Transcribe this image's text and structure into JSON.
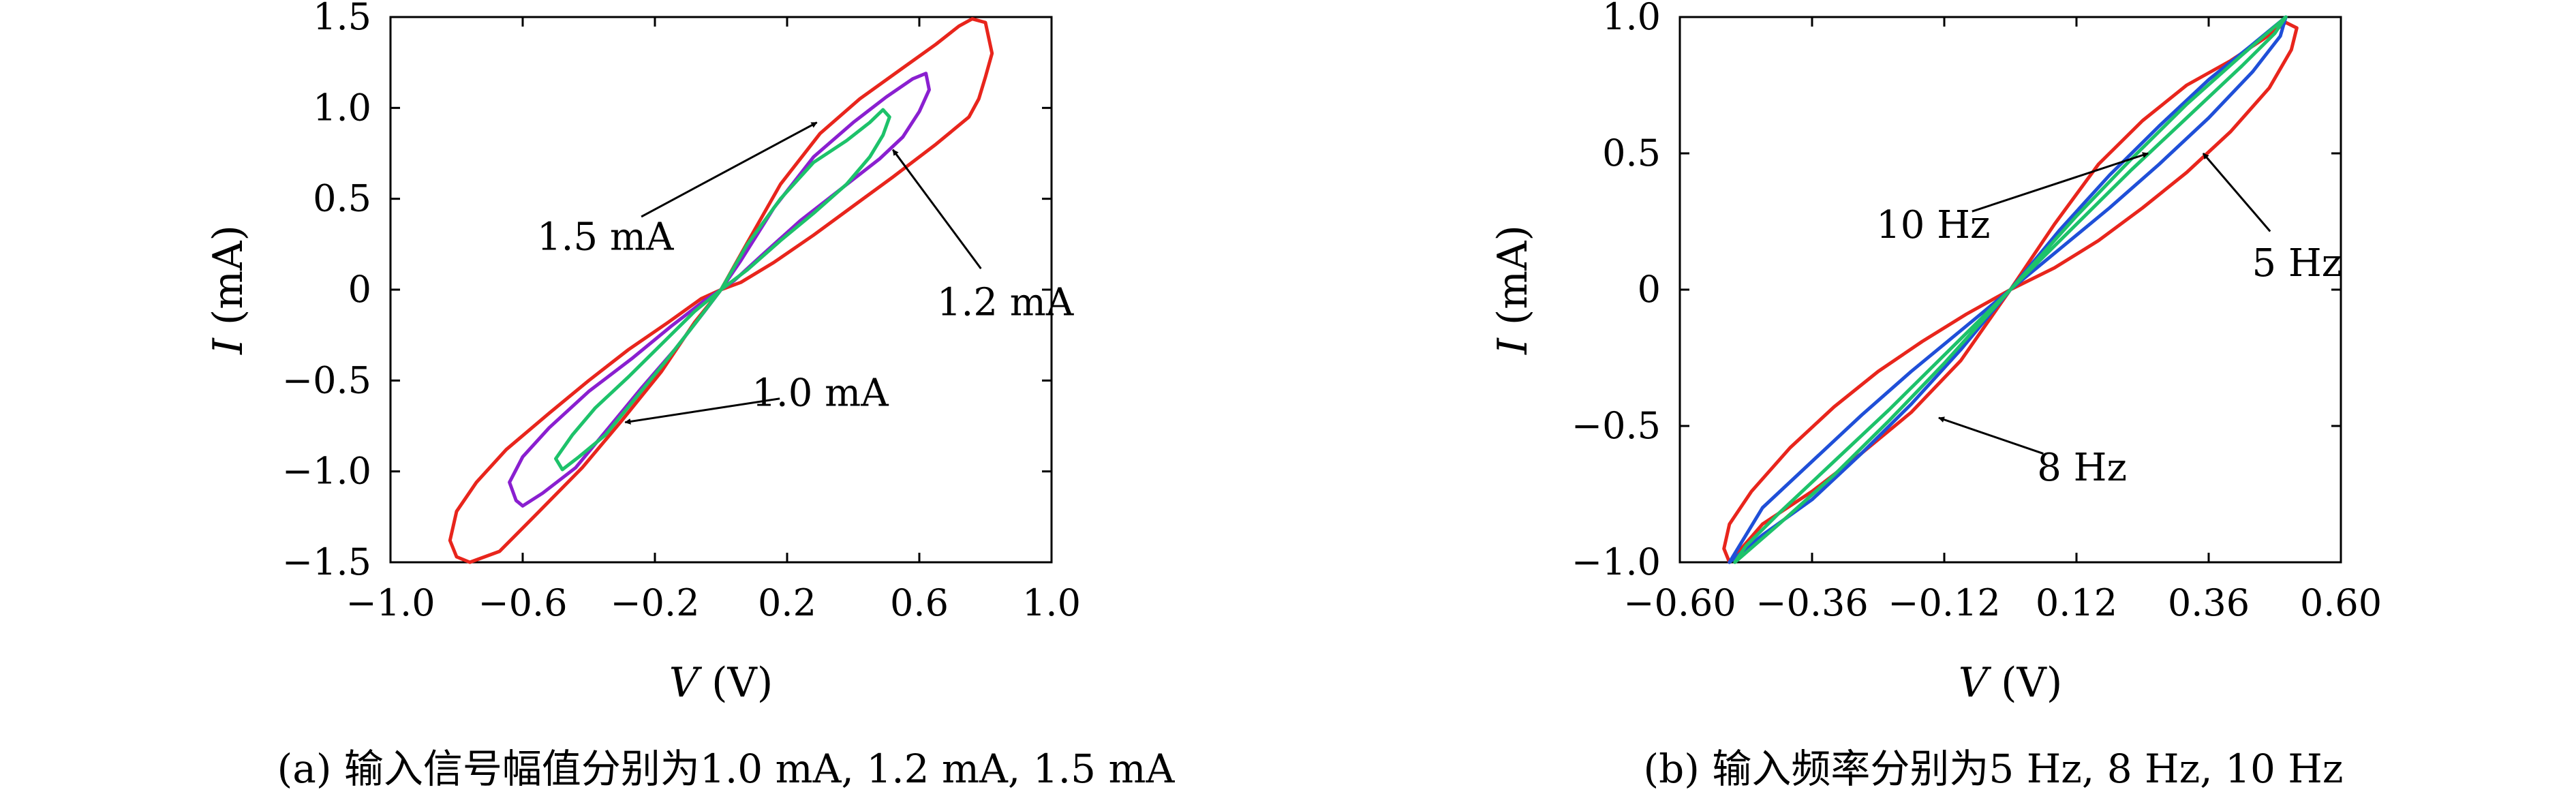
{
  "chart_data": [
    {
      "type": "line",
      "caption": "(a) 输入信号幅值分别为1.0 mA, 1.2 mA, 1.5 mA",
      "xlabel": "V (V)",
      "ylabel": "I (mA)",
      "xlim": [
        -1.0,
        1.0
      ],
      "ylim": [
        -1.5,
        1.5
      ],
      "xticks": [
        -1.0,
        -0.6,
        -0.2,
        0.2,
        0.6,
        1.0
      ],
      "xtick_labels": [
        "−1.0",
        "−0.6",
        "−0.2",
        "0.2",
        "0.6",
        "1.0"
      ],
      "yticks": [
        1.5,
        1.0,
        0.5,
        0,
        -0.5,
        -1.0,
        -1.5
      ],
      "ytick_labels": [
        "1.5",
        "1.0",
        "0.5",
        "0",
        "−0.5",
        "−1.0",
        "−1.5"
      ],
      "grid": false,
      "series": [
        {
          "color": "#e8251c",
          "x": [
            -0.76,
            -0.67,
            -0.55,
            -0.42,
            -0.3,
            -0.18,
            -0.08,
            0.0,
            0.08,
            0.18,
            0.3,
            0.42,
            0.55,
            0.65,
            0.72,
            0.76,
            0.8,
            0.82,
            0.8,
            0.78,
            0.75,
            0.65,
            0.52,
            0.4,
            0.28,
            0.16,
            0.06,
            0.0,
            -0.06,
            -0.16,
            -0.28,
            -0.4,
            -0.52,
            -0.65,
            -0.74,
            -0.8,
            -0.82,
            -0.8,
            -0.76
          ],
          "y": [
            -1.5,
            -1.44,
            -1.22,
            -0.98,
            -0.72,
            -0.45,
            -0.18,
            0.0,
            0.26,
            0.58,
            0.86,
            1.05,
            1.22,
            1.35,
            1.45,
            1.49,
            1.47,
            1.3,
            1.17,
            1.05,
            0.95,
            0.8,
            0.62,
            0.46,
            0.3,
            0.15,
            0.04,
            0.0,
            -0.05,
            -0.18,
            -0.33,
            -0.5,
            -0.68,
            -0.88,
            -1.06,
            -1.22,
            -1.38,
            -1.47,
            -1.5
          ]
        },
        {
          "color": "#8a1fd0",
          "x": [
            -0.6,
            -0.54,
            -0.44,
            -0.34,
            -0.24,
            -0.14,
            -0.05,
            0.0,
            0.06,
            0.16,
            0.28,
            0.4,
            0.5,
            0.58,
            0.62,
            0.63,
            0.6,
            0.55,
            0.48,
            0.36,
            0.24,
            0.13,
            0.04,
            0.0,
            -0.05,
            -0.15,
            -0.27,
            -0.4,
            -0.52,
            -0.6,
            -0.64,
            -0.62,
            -0.6
          ],
          "y": [
            -1.19,
            -1.12,
            -0.98,
            -0.76,
            -0.54,
            -0.33,
            -0.12,
            0.0,
            0.16,
            0.45,
            0.73,
            0.92,
            1.06,
            1.16,
            1.19,
            1.1,
            0.98,
            0.84,
            0.72,
            0.55,
            0.38,
            0.2,
            0.05,
            0.0,
            -0.06,
            -0.2,
            -0.38,
            -0.56,
            -0.76,
            -0.92,
            -1.06,
            -1.16,
            -1.19
          ]
        },
        {
          "color": "#1dc26a",
          "x": [
            -0.48,
            -0.43,
            -0.35,
            -0.26,
            -0.17,
            -0.08,
            0.0,
            0.08,
            0.18,
            0.28,
            0.38,
            0.45,
            0.49,
            0.51,
            0.49,
            0.45,
            0.38,
            0.28,
            0.18,
            0.08,
            0.0,
            -0.08,
            -0.18,
            -0.28,
            -0.38,
            -0.45,
            -0.5,
            -0.48
          ],
          "y": [
            -0.99,
            -0.92,
            -0.8,
            -0.6,
            -0.4,
            -0.19,
            0.0,
            0.25,
            0.5,
            0.7,
            0.82,
            0.92,
            0.99,
            0.95,
            0.85,
            0.73,
            0.58,
            0.42,
            0.27,
            0.11,
            0.0,
            -0.12,
            -0.3,
            -0.48,
            -0.65,
            -0.8,
            -0.93,
            -0.99
          ]
        }
      ],
      "annotations": [
        {
          "text": "1.5 mA",
          "x": -0.35,
          "y": 0.22,
          "arrow_to": [
            0.29,
            0.92
          ]
        },
        {
          "text": "1.2 mA",
          "x": 0.86,
          "y": -0.14,
          "arrow_to": [
            0.52,
            0.77
          ]
        },
        {
          "text": "1.0 mA",
          "x": 0.3,
          "y": -0.64,
          "arrow_to": [
            -0.29,
            -0.73
          ]
        }
      ]
    },
    {
      "type": "line",
      "caption": "(b) 输入频率分别为5 Hz, 8 Hz, 10 Hz",
      "xlabel": "V (V)",
      "ylabel": "I (mA)",
      "xlim": [
        -0.6,
        0.6
      ],
      "ylim": [
        -1.0,
        1.0
      ],
      "xticks": [
        -0.6,
        -0.36,
        -0.12,
        0.12,
        0.36,
        0.6
      ],
      "xtick_labels": [
        "−0.60",
        "−0.36",
        "−0.12",
        "0.12",
        "0.36",
        "0.60"
      ],
      "yticks": [
        1.0,
        0.5,
        0,
        -0.5,
        -1.0
      ],
      "ytick_labels": [
        "1.0",
        "0.5",
        "0",
        "−0.5",
        "−1.0"
      ],
      "grid": false,
      "series": [
        {
          "color": "#e8251c",
          "x": [
            -0.51,
            -0.45,
            -0.36,
            -0.27,
            -0.18,
            -0.09,
            0.0,
            0.08,
            0.16,
            0.24,
            0.32,
            0.4,
            0.46,
            0.5,
            0.52,
            0.51,
            0.47,
            0.4,
            0.32,
            0.24,
            0.16,
            0.08,
            0.0,
            -0.08,
            -0.16,
            -0.24,
            -0.32,
            -0.4,
            -0.47,
            -0.51,
            -0.52,
            -0.51
          ],
          "y": [
            -1.0,
            -0.86,
            -0.74,
            -0.6,
            -0.45,
            -0.26,
            0.0,
            0.24,
            0.46,
            0.62,
            0.75,
            0.84,
            0.92,
            0.98,
            0.96,
            0.88,
            0.74,
            0.58,
            0.43,
            0.3,
            0.18,
            0.08,
            0.0,
            -0.09,
            -0.19,
            -0.3,
            -0.43,
            -0.58,
            -0.74,
            -0.86,
            -0.95,
            -1.0
          ]
        },
        {
          "color": "#1f4fd8",
          "x": [
            -0.51,
            -0.45,
            -0.36,
            -0.27,
            -0.18,
            -0.09,
            0.0,
            0.09,
            0.18,
            0.27,
            0.36,
            0.44,
            0.5,
            0.49,
            0.44,
            0.36,
            0.27,
            0.18,
            0.09,
            0.0,
            -0.09,
            -0.18,
            -0.27,
            -0.36,
            -0.45,
            -0.51
          ],
          "y": [
            -1.0,
            -0.9,
            -0.77,
            -0.6,
            -0.42,
            -0.22,
            0.0,
            0.22,
            0.42,
            0.6,
            0.77,
            0.9,
            1.0,
            0.93,
            0.8,
            0.63,
            0.46,
            0.3,
            0.15,
            0.0,
            -0.15,
            -0.3,
            -0.46,
            -0.63,
            -0.8,
            -1.0
          ]
        },
        {
          "color": "#1dc26a",
          "x": [
            -0.5,
            -0.42,
            -0.32,
            -0.22,
            -0.12,
            0.0,
            0.12,
            0.22,
            0.32,
            0.42,
            0.5,
            0.48,
            0.42,
            0.32,
            0.22,
            0.12,
            0.0,
            -0.12,
            -0.22,
            -0.32,
            -0.42,
            -0.48,
            -0.5
          ],
          "y": [
            -1.0,
            -0.86,
            -0.68,
            -0.48,
            -0.27,
            0.0,
            0.27,
            0.48,
            0.68,
            0.86,
            1.0,
            0.94,
            0.82,
            0.63,
            0.44,
            0.24,
            0.0,
            -0.24,
            -0.44,
            -0.63,
            -0.82,
            -0.94,
            -1.0
          ]
        }
      ],
      "annotations": [
        {
          "text": "10 Hz",
          "x": -0.14,
          "y": 0.19,
          "arrow_to": [
            0.25,
            0.5
          ]
        },
        {
          "text": "5 Hz",
          "x": 0.52,
          "y": 0.05,
          "arrow_to": [
            0.35,
            0.5
          ]
        },
        {
          "text": "8 Hz",
          "x": 0.13,
          "y": -0.7,
          "arrow_to": [
            -0.13,
            -0.47
          ]
        }
      ]
    }
  ]
}
